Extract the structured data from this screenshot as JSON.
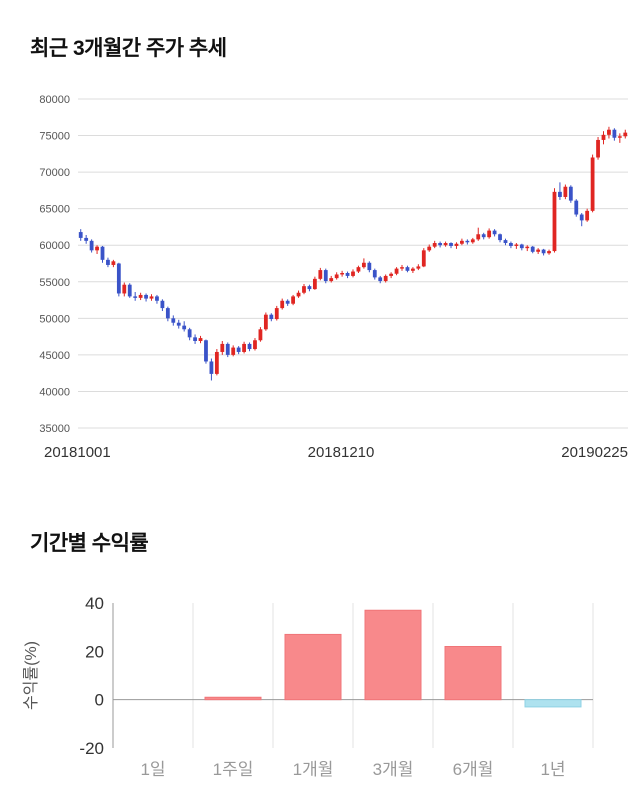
{
  "chart_data": [
    {
      "type": "candlestick",
      "title": "최근 3개월간 주가 추세",
      "ylim": [
        35000,
        80000
      ],
      "y_ticks": [
        80000,
        75000,
        70000,
        65000,
        60000,
        55000,
        50000,
        45000,
        40000,
        35000
      ],
      "x_labels": [
        "20181001",
        "20181210",
        "20190225"
      ],
      "up_color": "#e02622",
      "down_color": "#3a53c8",
      "grid_color": "#dcdcdc",
      "axis_label_color": "#555555",
      "x_label_color": "#333333",
      "candles_ohlc": [
        [
          61800,
          62200,
          60600,
          61000
        ],
        [
          61000,
          61400,
          60200,
          60600
        ],
        [
          60600,
          60800,
          59000,
          59300
        ],
        [
          59300,
          60000,
          58800,
          59800
        ],
        [
          59800,
          59900,
          57600,
          58000
        ],
        [
          58000,
          58300,
          57000,
          57300
        ],
        [
          57300,
          58000,
          57000,
          57800
        ],
        [
          57500,
          57600,
          53000,
          53400
        ],
        [
          53400,
          54900,
          53000,
          54600
        ],
        [
          54600,
          54800,
          52800,
          53000
        ],
        [
          53000,
          53600,
          52400,
          52800
        ],
        [
          52800,
          53500,
          52500,
          53200
        ],
        [
          53200,
          53400,
          52300,
          52700
        ],
        [
          52700,
          53300,
          52400,
          53000
        ],
        [
          53000,
          53200,
          52000,
          52400
        ],
        [
          52400,
          52600,
          51000,
          51400
        ],
        [
          51400,
          51600,
          49600,
          50000
        ],
        [
          50000,
          50400,
          49000,
          49400
        ],
        [
          49400,
          49800,
          48600,
          49000
        ],
        [
          49000,
          49600,
          48200,
          48500
        ],
        [
          48500,
          48700,
          47000,
          47400
        ],
        [
          47400,
          47800,
          46500,
          46900
        ],
        [
          46900,
          47600,
          46600,
          47300
        ],
        [
          47000,
          47100,
          43800,
          44100
        ],
        [
          44100,
          44500,
          41500,
          42400
        ],
        [
          42400,
          45800,
          42200,
          45400
        ],
        [
          45400,
          46900,
          45000,
          46500
        ],
        [
          46500,
          46700,
          44700,
          45000
        ],
        [
          45000,
          46300,
          44800,
          46000
        ],
        [
          46000,
          46200,
          45100,
          45400
        ],
        [
          45400,
          46800,
          45200,
          46500
        ],
        [
          46500,
          46700,
          45500,
          45800
        ],
        [
          45800,
          47300,
          45600,
          47000
        ],
        [
          47000,
          48800,
          46800,
          48500
        ],
        [
          48500,
          50800,
          48300,
          50500
        ],
        [
          50500,
          50700,
          49600,
          49900
        ],
        [
          49900,
          51700,
          49700,
          51400
        ],
        [
          51400,
          52700,
          51200,
          52400
        ],
        [
          52400,
          52600,
          51700,
          52000
        ],
        [
          52000,
          53200,
          51800,
          53000
        ],
        [
          53000,
          53800,
          52800,
          53500
        ],
        [
          53500,
          54700,
          53300,
          54400
        ],
        [
          54400,
          54600,
          53700,
          54000
        ],
        [
          54000,
          55700,
          53900,
          55400
        ],
        [
          55400,
          56900,
          55200,
          56600
        ],
        [
          56600,
          56800,
          54800,
          55100
        ],
        [
          55100,
          55800,
          54900,
          55500
        ],
        [
          55500,
          56300,
          55300,
          56000
        ],
        [
          56000,
          56500,
          55700,
          56200
        ],
        [
          56200,
          56400,
          55500,
          55800
        ],
        [
          55800,
          56700,
          55600,
          56400
        ],
        [
          56400,
          57200,
          56200,
          57000
        ],
        [
          57000,
          58200,
          56800,
          57600
        ],
        [
          57600,
          57800,
          56300,
          56600
        ],
        [
          56600,
          56800,
          55300,
          55600
        ],
        [
          55600,
          55800,
          54800,
          55100
        ],
        [
          55100,
          56000,
          54900,
          55800
        ],
        [
          55800,
          56300,
          55500,
          56100
        ],
        [
          56100,
          57000,
          55900,
          56800
        ],
        [
          56800,
          57300,
          56500,
          57000
        ],
        [
          57000,
          57200,
          56300,
          56500
        ],
        [
          56500,
          57000,
          56200,
          56800
        ],
        [
          56800,
          57400,
          56600,
          57100
        ],
        [
          57100,
          59600,
          57000,
          59300
        ],
        [
          59300,
          60100,
          59100,
          59800
        ],
        [
          59800,
          60600,
          59600,
          60300
        ],
        [
          60300,
          60500,
          59700,
          60000
        ],
        [
          60000,
          60500,
          59800,
          60300
        ],
        [
          60300,
          60400,
          59600,
          59900
        ],
        [
          59900,
          60400,
          59500,
          60200
        ],
        [
          60200,
          60900,
          60000,
          60600
        ],
        [
          60600,
          60800,
          60100,
          60400
        ],
        [
          60400,
          61000,
          60200,
          60800
        ],
        [
          60800,
          62400,
          60600,
          61500
        ],
        [
          61500,
          61700,
          60800,
          61100
        ],
        [
          61100,
          62300,
          60900,
          62000
        ],
        [
          62000,
          62200,
          61200,
          61500
        ],
        [
          61500,
          61600,
          60400,
          60700
        ],
        [
          60700,
          60900,
          60000,
          60300
        ],
        [
          60300,
          60500,
          59600,
          59900
        ],
        [
          59900,
          60300,
          59500,
          60100
        ],
        [
          60100,
          60200,
          59300,
          59600
        ],
        [
          59600,
          60000,
          59200,
          59800
        ],
        [
          59800,
          59900,
          58900,
          59100
        ],
        [
          59100,
          59600,
          58800,
          59400
        ],
        [
          59400,
          59500,
          58600,
          58900
        ],
        [
          58900,
          59400,
          58700,
          59200
        ],
        [
          59200,
          67800,
          59000,
          67300
        ],
        [
          67300,
          68600,
          66200,
          66600
        ],
        [
          66600,
          68300,
          66300,
          68000
        ],
        [
          68000,
          68200,
          65800,
          66100
        ],
        [
          66100,
          66300,
          63900,
          64200
        ],
        [
          64200,
          64400,
          62600,
          63400
        ],
        [
          63400,
          65000,
          63200,
          64700
        ],
        [
          64700,
          72400,
          64500,
          72000
        ],
        [
          72000,
          74800,
          71700,
          74400
        ],
        [
          74400,
          75600,
          73800,
          75100
        ],
        [
          75100,
          76200,
          74600,
          75800
        ],
        [
          75800,
          76000,
          74300,
          74700
        ],
        [
          74700,
          75300,
          74000,
          74900
        ],
        [
          74900,
          75800,
          74600,
          75400
        ]
      ]
    },
    {
      "type": "bar",
      "title": "기간별 수익률",
      "ylabel": "수익률(%)",
      "categories": [
        "1일",
        "1주일",
        "1개월",
        "3개월",
        "6개월",
        "1년"
      ],
      "values": [
        0,
        1,
        27,
        37,
        22,
        -3
      ],
      "ylim": [
        -20,
        40
      ],
      "y_ticks": [
        40,
        20,
        0,
        -20
      ],
      "positive_color": "#f8898b",
      "positive_border": "#f07578",
      "negative_color": "#aee2ef",
      "negative_border": "#8fd2e4",
      "grid_color": "#e3e3e3",
      "axis_color": "#999999",
      "tick_label_color": "#333333",
      "category_label_color": "#999999",
      "ylabel_color": "#555555"
    }
  ]
}
